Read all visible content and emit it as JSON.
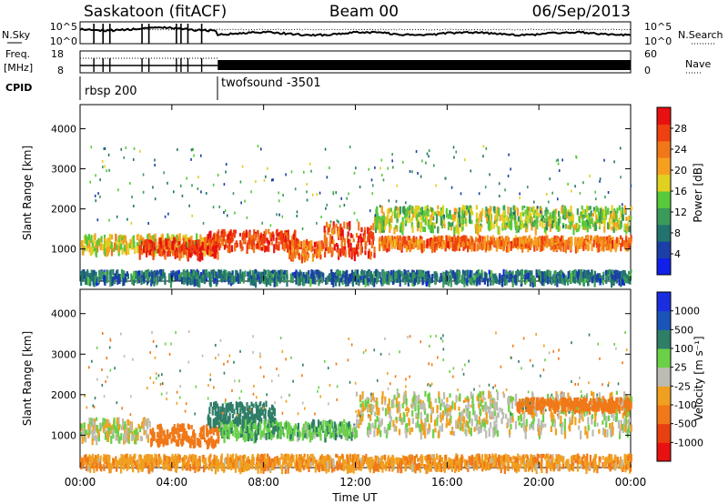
{
  "header": {
    "station": "Saskatoon (fitACF)",
    "beam": "Beam 00",
    "date": "06/Sep/2013"
  },
  "strip": {
    "nsky_label": "N.Sky",
    "nsky_ticks": [
      "10^5",
      "10^0"
    ],
    "nsearch_label": "N.Search",
    "nsearch_ticks": [
      "10^5",
      "10^0"
    ],
    "freq_label": "Freq.",
    "freq_unit": "[MHz]",
    "freq_ticks": [
      "18",
      "8"
    ],
    "nave_label": "Nave",
    "nave_ticks": [
      "60",
      "0"
    ],
    "cpid_label": "CPID",
    "cpid_programs": [
      {
        "name": "rbsp 200",
        "start_hour": 0
      },
      {
        "name": "twofsound -3501",
        "start_hour": 6
      }
    ]
  },
  "chart_data": [
    {
      "type": "heatmap",
      "name": "power",
      "xlabel": "Time UT",
      "ylabel": "Slant Range [km]",
      "xlim": [
        0,
        24
      ],
      "ylim": [
        200,
        4600
      ],
      "x_ticks": [
        "00:00",
        "04:00",
        "08:00",
        "12:00",
        "16:00",
        "20:00",
        "00:00"
      ],
      "y_ticks": [
        1000,
        2000,
        3000,
        4000
      ],
      "colorbar": {
        "label": "Power [dB]",
        "ticks": [
          4,
          8,
          12,
          16,
          20,
          24,
          28
        ],
        "range": [
          0,
          32
        ],
        "colors": [
          "#1020e8",
          "#1b3fa6",
          "#22736e",
          "#3a9a5a",
          "#58c93a",
          "#e0d020",
          "#f7a020",
          "#f07818",
          "#ee4010",
          "#e81010"
        ]
      },
      "bands": [
        {
          "t0": 0.0,
          "t1": 6.0,
          "r0": 1000,
          "r1": 1400,
          "value": 18
        },
        {
          "t0": 2.5,
          "t1": 6.0,
          "r0": 900,
          "r1": 1300,
          "value": 28
        },
        {
          "t0": 5.5,
          "t1": 9.5,
          "r0": 1050,
          "r1": 1500,
          "value": 27
        },
        {
          "t0": 9.0,
          "t1": 10.6,
          "r0": 850,
          "r1": 1250,
          "value": 25
        },
        {
          "t0": 10.5,
          "t1": 12.8,
          "r0": 900,
          "r1": 1700,
          "value": 27
        },
        {
          "t0": 12.8,
          "t1": 24.0,
          "r0": 1550,
          "r1": 2100,
          "value": 16
        },
        {
          "t0": 13.0,
          "t1": 24.0,
          "r0": 1100,
          "r1": 1350,
          "value": 24
        },
        {
          "t0": 0.0,
          "t1": 24.0,
          "r0": 250,
          "r1": 500,
          "value": 8
        }
      ]
    },
    {
      "type": "heatmap",
      "name": "velocity",
      "xlabel": "Time UT",
      "ylabel": "Slant Range [km]",
      "xlim": [
        0,
        24
      ],
      "ylim": [
        200,
        4600
      ],
      "x_ticks": [
        "00:00",
        "04:00",
        "08:00",
        "12:00",
        "16:00",
        "20:00",
        "00:00"
      ],
      "y_ticks": [
        1000,
        2000,
        3000,
        4000
      ],
      "colorbar": {
        "label": "Velocity [m s⁻¹]",
        "ticks": [
          "1000",
          "500",
          "100",
          "25",
          "-25",
          "-100",
          "-500",
          "-1000"
        ],
        "colors": [
          "#1a2ee0",
          "#1b54b8",
          "#2f7e68",
          "#6ad048",
          "#bcbcb4",
          "#f0a020",
          "#f07818",
          "#e84010",
          "#e81010"
        ]
      },
      "bands": [
        {
          "t0": 0.0,
          "t1": 3.0,
          "r0": 950,
          "r1": 1450,
          "value": 0
        },
        {
          "t0": 3.0,
          "t1": 6.0,
          "r0": 850,
          "r1": 1300,
          "value": -300
        },
        {
          "t0": 5.5,
          "t1": 8.5,
          "r0": 1350,
          "r1": 1850,
          "value": 300
        },
        {
          "t0": 6.0,
          "t1": 12.0,
          "r0": 1000,
          "r1": 1400,
          "value": 80
        },
        {
          "t0": 12.0,
          "t1": 24.0,
          "r0": 1100,
          "r1": 2100,
          "value": 0
        },
        {
          "t0": 19.0,
          "t1": 24.0,
          "r0": 1700,
          "r1": 1950,
          "value": -300
        },
        {
          "t0": 0.0,
          "t1": 24.0,
          "r0": 250,
          "r1": 550,
          "value": -80
        }
      ]
    }
  ]
}
